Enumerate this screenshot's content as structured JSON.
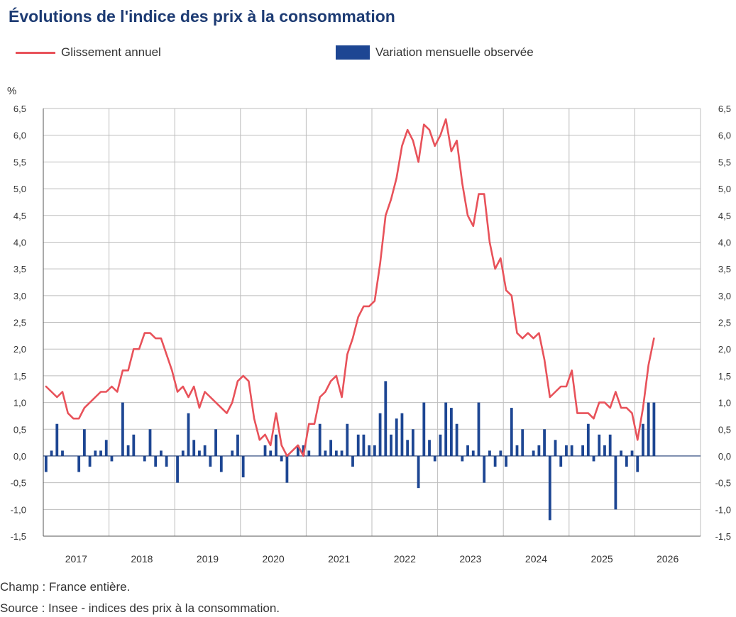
{
  "title": "Évolutions de l'indice des prix à la consommation",
  "legend": [
    {
      "label": "Glissement annuel",
      "kind": "line",
      "color": "#e8525a"
    },
    {
      "label": "Variation mensuelle observée",
      "kind": "bar",
      "color": "#1d4693"
    }
  ],
  "footnotes": {
    "champ": "Champ : France entière.",
    "source": "Source : Insee - indices des prix à la consommation."
  },
  "chart_data": {
    "type": "bar",
    "unit_label": "%",
    "ylim": [
      -1.5,
      6.5
    ],
    "y_ticks": [
      "6,5",
      "6,0",
      "5,5",
      "5,0",
      "4,5",
      "4,0",
      "3,5",
      "3,0",
      "2,5",
      "2,0",
      "1,5",
      "1,0",
      "0,5",
      "0,0",
      "-0,5",
      "-1,0",
      "-1,5"
    ],
    "y_tick_values": [
      6.5,
      6.0,
      5.5,
      5.0,
      4.5,
      4.0,
      3.5,
      3.0,
      2.5,
      2.0,
      1.5,
      1.0,
      0.5,
      0.0,
      -0.5,
      -1.0,
      -1.5
    ],
    "x_labels": [
      "2017",
      "2018",
      "2019",
      "2020",
      "2021",
      "2022",
      "2023",
      "2024",
      "2025",
      "2026"
    ],
    "start_month": "2017-01",
    "grid": true,
    "legend_position": "top",
    "series": [
      {
        "name": "Glissement annuel",
        "type": "line",
        "color": "#e8525a",
        "values": [
          1.3,
          1.2,
          1.1,
          1.2,
          0.8,
          0.7,
          0.7,
          0.9,
          1.0,
          1.1,
          1.2,
          1.2,
          1.3,
          1.2,
          1.6,
          1.6,
          2.0,
          2.0,
          2.3,
          2.3,
          2.2,
          2.2,
          1.9,
          1.6,
          1.2,
          1.3,
          1.1,
          1.3,
          0.9,
          1.2,
          1.1,
          1.0,
          0.9,
          0.8,
          1.0,
          1.4,
          1.5,
          1.4,
          0.7,
          0.3,
          0.4,
          0.2,
          0.8,
          0.2,
          0.0,
          0.1,
          0.2,
          0.0,
          0.6,
          0.6,
          1.1,
          1.2,
          1.4,
          1.5,
          1.1,
          1.9,
          2.2,
          2.6,
          2.8,
          2.8,
          2.9,
          3.6,
          4.5,
          4.8,
          5.2,
          5.8,
          6.1,
          5.9,
          5.5,
          6.2,
          6.1,
          5.8,
          6.0,
          6.3,
          5.7,
          5.9,
          5.1,
          4.5,
          4.3,
          4.9,
          4.9,
          4.0,
          3.5,
          3.7,
          3.1,
          3.0,
          2.3,
          2.2,
          2.3,
          2.2,
          2.3,
          1.8,
          1.1,
          1.2,
          1.3,
          1.3,
          1.6,
          0.8,
          0.8,
          0.8,
          0.7,
          1.0,
          1.0,
          0.9,
          1.2,
          0.9,
          0.9,
          0.8,
          0.3,
          0.9,
          1.7,
          2.2
        ]
      },
      {
        "name": "Variation mensuelle observée",
        "type": "bar",
        "color": "#1d4693",
        "values": [
          -0.3,
          0.1,
          0.6,
          0.1,
          0.0,
          0.0,
          -0.3,
          0.5,
          -0.2,
          0.1,
          0.1,
          0.3,
          -0.1,
          0.0,
          1.0,
          0.2,
          0.4,
          0.0,
          -0.1,
          0.5,
          -0.2,
          0.1,
          -0.2,
          0.0,
          -0.5,
          0.1,
          0.8,
          0.3,
          0.1,
          0.2,
          -0.2,
          0.5,
          -0.3,
          0.0,
          0.1,
          0.4,
          -0.4,
          0.0,
          0.0,
          0.0,
          0.2,
          0.1,
          0.4,
          -0.1,
          -0.5,
          0.0,
          0.2,
          0.2,
          0.1,
          0.0,
          0.6,
          0.1,
          0.3,
          0.1,
          0.1,
          0.6,
          -0.2,
          0.4,
          0.4,
          0.2,
          0.2,
          0.8,
          1.4,
          0.4,
          0.7,
          0.8,
          0.3,
          0.5,
          -0.6,
          1.0,
          0.3,
          -0.1,
          0.4,
          1.0,
          0.9,
          0.6,
          -0.1,
          0.2,
          0.1,
          1.0,
          -0.5,
          0.1,
          -0.2,
          0.1,
          -0.2,
          0.9,
          0.2,
          0.5,
          0.0,
          0.1,
          0.2,
          0.5,
          -1.2,
          0.3,
          -0.2,
          0.2,
          0.2,
          0.0,
          0.2,
          0.6,
          -0.1,
          0.4,
          0.2,
          0.4,
          -1.0,
          0.1,
          -0.2,
          0.1,
          -0.3,
          0.6,
          1.0,
          1.0
        ]
      }
    ]
  }
}
